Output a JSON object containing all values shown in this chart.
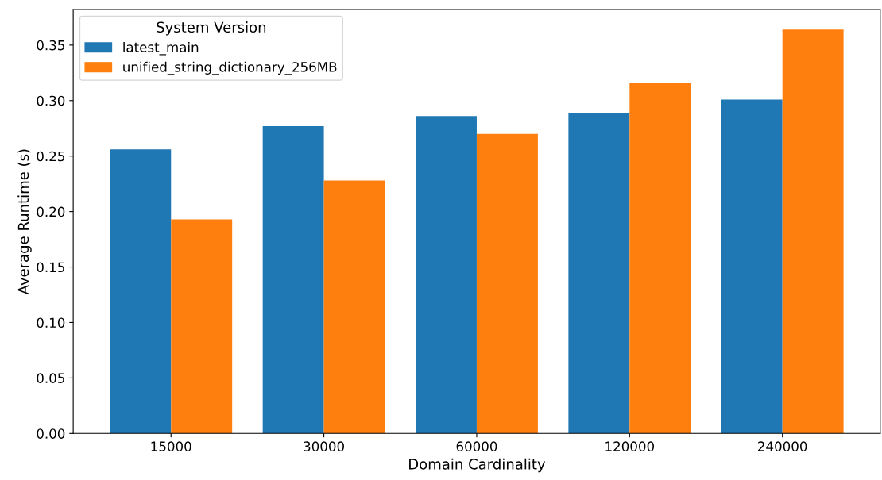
{
  "chart_data": {
    "type": "bar",
    "xlabel": "Domain Cardinality",
    "ylabel": "Average Runtime (s)",
    "legend_title": "System Version",
    "legend": "top left",
    "grid": false,
    "categories": [
      "15000",
      "30000",
      "60000",
      "120000",
      "240000"
    ],
    "series": [
      {
        "name": "latest_main",
        "color": "#1f77b4",
        "values": [
          0.256,
          0.277,
          0.286,
          0.289,
          0.301
        ]
      },
      {
        "name": "unified_string_dictionary_256MB",
        "color": "#ff7f0e",
        "values": [
          0.193,
          0.228,
          0.27,
          0.316,
          0.364
        ]
      }
    ],
    "ylim": [
      0,
      0.382
    ],
    "yticks": [
      {
        "value": 0,
        "label": "0.00"
      },
      {
        "value": 0.05,
        "label": "0.05"
      },
      {
        "value": 0.1,
        "label": "0.10"
      },
      {
        "value": 0.15,
        "label": "0.15"
      },
      {
        "value": 0.2,
        "label": "0.20"
      },
      {
        "value": 0.25,
        "label": "0.25"
      },
      {
        "value": 0.3,
        "label": "0.30"
      },
      {
        "value": 0.35,
        "label": "0.35"
      }
    ]
  }
}
